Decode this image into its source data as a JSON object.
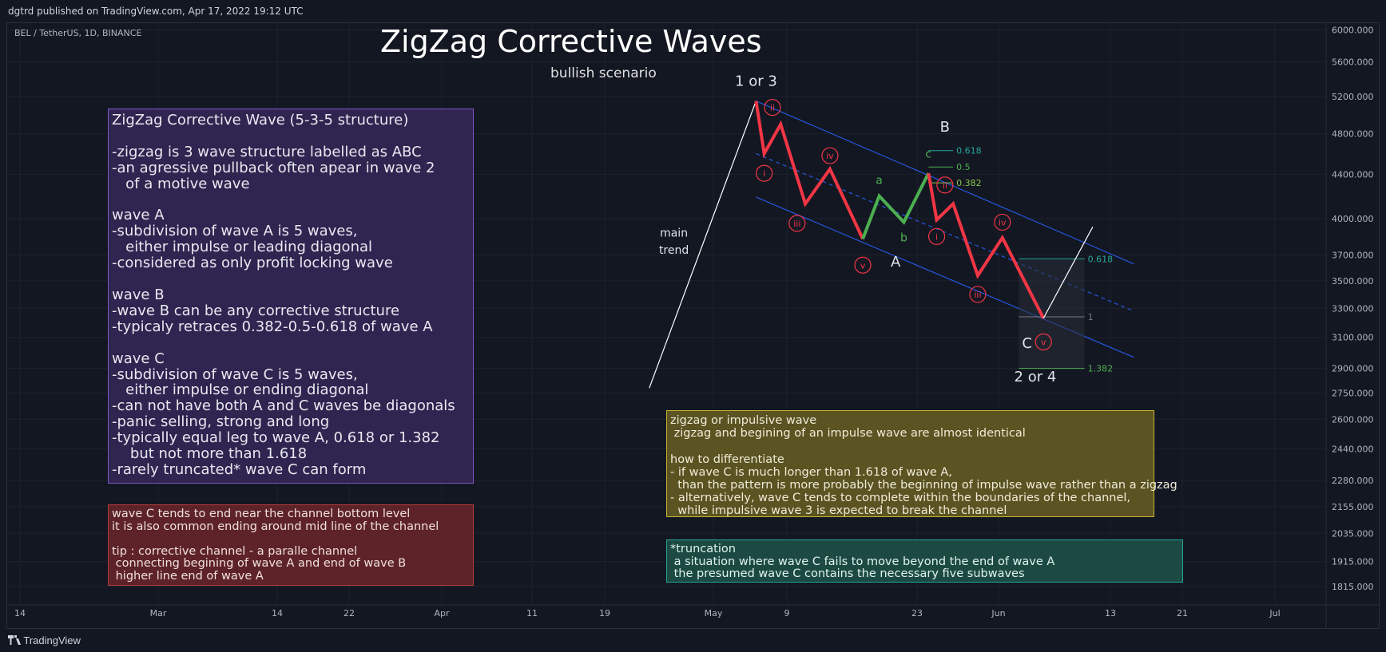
{
  "header": {
    "published": "dgtrd published on TradingView.com, Apr 17, 2022 19:12 UTC",
    "symbol": "BEL / TetherUS, 1D, BINANCE"
  },
  "title": "ZigZag Corrective Waves",
  "subtitle": "bullish scenario",
  "footer": {
    "brand": "TradingView"
  },
  "colors": {
    "background": "#131722",
    "grid": "#1e222d",
    "up_wave": "#4caf50",
    "down_wave": "#f23645",
    "channel": "#2962ff",
    "fib_teal": "#26a69a",
    "label_red": "#f23645"
  },
  "notes": {
    "purple": "ZigZag Corrective Wave (5-3-5 structure)\n\n-zigzag is 3 wave structure labelled as ABC\n-an agressive pullback often apear in wave 2\n   of a motive wave\n\nwave A\n-subdivision of wave A is 5 waves,\n   either impulse or leading diagonal\n-considered as only profit locking wave\n\nwave B\n-wave B can be any corrective structure\n-typicaly retraces 0.382-0.5-0.618 of wave A\n\nwave C\n-subdivision of wave C is 5 waves,\n   either impulse or ending diagonal\n-can not have both A and C waves be diagonals\n-panic selling, strong and long\n-typically equal leg to wave A, 0.618 or 1.382\n    but not more than 1.618\n-rarely truncated* wave C can form",
    "red": "wave C tends to end near the channel bottom level\nit is also common ending around mid line of the channel\n\ntip : corrective channel - a paralle channel\n connecting begining of wave A and end of wave B\n higher line end of wave A",
    "yellow": "zigzag or impulsive wave\n zigzag and begining of an impulse wave are almost identical\n\nhow to differentiate\n- if wave C is much longer than 1.618 of wave A,\n  than the pattern is more probably the beginning of impulse wave rather than a zigzag\n- alternatively, wave C tends to complete within the boundaries of the channel,\n  while impulsive wave 3 is expected to break the channel",
    "green": "*truncation\n a situation where wave C fails to move beyond the end of wave A\n the presumed wave C contains the necessary five subwaves"
  },
  "chart_data": {
    "type": "line",
    "title": "ZigZag Corrective Waves",
    "y_axis": {
      "scale": "log",
      "ticks": [
        6000,
        5600,
        5200,
        4800,
        4400,
        4000,
        3700,
        3500,
        3300,
        3100,
        2900,
        2750,
        2600,
        2440,
        2280,
        2155,
        2035,
        1915,
        1815
      ],
      "tick_labels": [
        "6000.000",
        "5600.000",
        "5200.000",
        "4800.000",
        "4400.000",
        "4000.000",
        "3700.000",
        "3500.000",
        "3300.000",
        "3100.000",
        "2900.000",
        "2750.000",
        "2600.000",
        "2440.000",
        "2280.000",
        "2155.000",
        "2035.000",
        "1915.000",
        "1815.000"
      ]
    },
    "x_axis": {
      "tick_labels": [
        "14",
        "Mar",
        "14",
        "22",
        "Apr",
        "11",
        "19",
        "May",
        "9",
        "23",
        "Jun",
        "13",
        "21",
        "Jul"
      ]
    },
    "series": [
      {
        "name": "main trend",
        "points": [
          [
            "2022-04-23",
            2780
          ],
          [
            "2022-05-06",
            5150
          ]
        ]
      },
      {
        "name": "wave A",
        "points": [
          [
            "2022-05-06",
            5150
          ],
          [
            "2022-05-07",
            4600
          ],
          [
            "2022-05-09",
            4900
          ],
          [
            "2022-05-12",
            4130
          ],
          [
            "2022-05-15",
            4450
          ],
          [
            "2022-05-19",
            3830
          ]
        ]
      },
      {
        "name": "wave B",
        "points": [
          [
            "2022-05-19",
            3830
          ],
          [
            "2022-05-21",
            4200
          ],
          [
            "2022-05-24",
            3970
          ],
          [
            "2022-05-27",
            4410
          ]
        ]
      },
      {
        "name": "wave C",
        "points": [
          [
            "2022-05-27",
            4410
          ],
          [
            "2022-05-28",
            3990
          ],
          [
            "2022-05-30",
            4130
          ],
          [
            "2022-06-02",
            3540
          ],
          [
            "2022-06-05",
            3840
          ],
          [
            "2022-06-10",
            3230
          ]
        ]
      },
      {
        "name": "projection",
        "points": [
          [
            "2022-06-10",
            3230
          ],
          [
            "2022-06-16",
            3930
          ]
        ]
      }
    ],
    "wave_labels": [
      {
        "text": "1 or 3",
        "x": "2022-05-06",
        "y": 5320
      },
      {
        "text": "B",
        "x": "2022-05-29",
        "y": 4820
      },
      {
        "text": "A",
        "x": "2022-05-23",
        "y": 3610
      },
      {
        "text": "C",
        "x": "2022-06-08",
        "y": 3030
      },
      {
        "text": "2 or 4",
        "x": "2022-06-09",
        "y": 2820
      },
      {
        "text": "a",
        "x": "2022-05-21",
        "y": 4310
      },
      {
        "text": "b",
        "x": "2022-05-24",
        "y": 3810
      },
      {
        "text": "c",
        "x": "2022-05-27",
        "y": 4560
      },
      {
        "text": "main",
        "x": "2022-04-26",
        "y": 3850
      },
      {
        "text": "trend",
        "x": "2022-04-26",
        "y": 3710
      }
    ],
    "sub_wave_labels": [
      {
        "text": "ii",
        "x": "2022-05-08",
        "y": 5080
      },
      {
        "text": "i",
        "x": "2022-05-07",
        "y": 4410
      },
      {
        "text": "iii",
        "x": "2022-05-11",
        "y": 3960
      },
      {
        "text": "iv",
        "x": "2022-05-15",
        "y": 4580
      },
      {
        "text": "v",
        "x": "2022-05-19",
        "y": 3620
      },
      {
        "text": "ii",
        "x": "2022-05-29",
        "y": 4300
      },
      {
        "text": "i",
        "x": "2022-05-28",
        "y": 3850
      },
      {
        "text": "iii",
        "x": "2022-06-02",
        "y": 3400
      },
      {
        "text": "iv",
        "x": "2022-06-05",
        "y": 3970
      },
      {
        "text": "v",
        "x": "2022-06-10",
        "y": 3070
      }
    ],
    "fib_levels": [
      {
        "label": "0.618",
        "price": 4630,
        "x0": "2022-05-27",
        "x1": "2022-05-30",
        "color": "#26a69a"
      },
      {
        "label": "0.5",
        "price": 4470,
        "x0": "2022-05-27",
        "x1": "2022-05-30",
        "color": "#4caf50"
      },
      {
        "label": "0.382",
        "price": 4320,
        "x0": "2022-05-27",
        "x1": "2022-05-30",
        "color": "#8bc34a"
      },
      {
        "label": "0.618",
        "price": 3670,
        "x0": "2022-06-07",
        "x1": "2022-06-15",
        "color": "#26a69a"
      },
      {
        "label": "1",
        "price": 3240,
        "x0": "2022-06-07",
        "x1": "2022-06-15",
        "color": "#787b86"
      },
      {
        "label": "1.382",
        "price": 2900,
        "x0": "2022-06-07",
        "x1": "2022-06-15",
        "color": "#4caf50"
      }
    ],
    "channel": {
      "upper": [
        [
          "2022-05-06",
          5150
        ],
        [
          "2022-06-21",
          3630
        ]
      ],
      "middle": [
        [
          "2022-05-06",
          4600
        ],
        [
          "2022-06-21",
          3280
        ]
      ],
      "lower": [
        [
          "2022-05-06",
          4190
        ],
        [
          "2022-06-21",
          2970
        ]
      ]
    },
    "grid": true
  }
}
